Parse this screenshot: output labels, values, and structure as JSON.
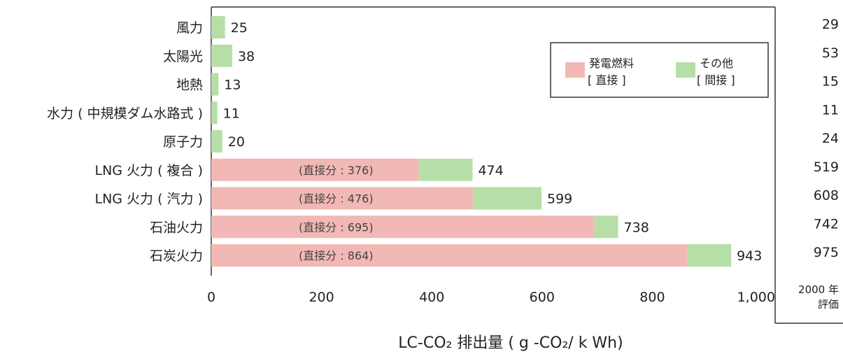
{
  "chart_data": {
    "type": "bar",
    "orientation": "horizontal",
    "stacked": true,
    "categories": [
      "風力",
      "太陽光",
      "地熱",
      "水力 ( 中規模ダム水路式 )",
      "原子力",
      "LNG 火力 ( 複合 )",
      "LNG 火力 ( 汽力 )",
      "石油火力",
      "石炭火力"
    ],
    "series": [
      {
        "name": "発電燃料 [ 直接 ]",
        "color": "#f2b8b5",
        "values": [
          0,
          0,
          0,
          0,
          0,
          376,
          476,
          695,
          864
        ]
      },
      {
        "name": "その他 [ 間接 ]",
        "color": "#b5dfa6",
        "values": [
          25,
          38,
          13,
          11,
          20,
          98,
          123,
          43,
          79
        ]
      }
    ],
    "totals": [
      "25",
      "38",
      "13",
      "11",
      "20",
      "474",
      "599",
      "738",
      "943"
    ],
    "inner_labels": [
      "",
      "",
      "",
      "",
      "",
      "(直接分 : 376)",
      "(直接分 : 476)",
      "(直接分 : 695)",
      "(直接分 : 864)"
    ],
    "side_values": [
      "29",
      "53",
      "15",
      "11",
      "24",
      "519",
      "608",
      "742",
      "975"
    ],
    "side_note": [
      "2000 年",
      "評価"
    ],
    "xlim": [
      0,
      1100
    ],
    "xticks": [
      0,
      200,
      400,
      600,
      800,
      1000
    ],
    "xtick_labels": [
      "0",
      "200",
      "400",
      "600",
      "800",
      "1,000"
    ],
    "xlabel": "LC-CO₂ 排出量 ( g -CO₂/ k Wh)",
    "legend_position": "top-right",
    "grid": false
  }
}
